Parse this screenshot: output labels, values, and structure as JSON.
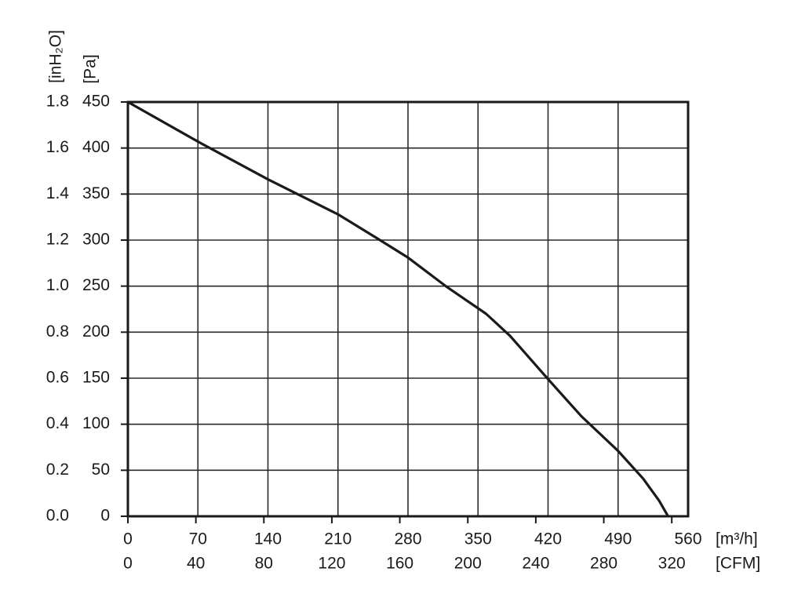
{
  "chart_data": {
    "type": "line",
    "y_label": "[inH₂O]",
    "y2_label": "[Pa]",
    "x_label": "[m³/h]",
    "x2_label": "[CFM]",
    "x": [
      0,
      70,
      140,
      210,
      249,
      280,
      319,
      358,
      382,
      420,
      453,
      490,
      515,
      531,
      540
    ],
    "values": [
      450,
      407,
      366,
      328,
      302,
      281,
      249,
      220,
      196,
      149,
      109,
      71,
      41,
      17,
      0
    ],
    "color": "#1a1a1a",
    "xlim": [
      0,
      560
    ],
    "xticks": [
      0,
      70,
      140,
      210,
      280,
      350,
      420,
      490,
      560
    ],
    "x2lim": [
      0,
      329.6
    ],
    "x2ticks": [
      0,
      40,
      80,
      120,
      160,
      200,
      240,
      280,
      320
    ],
    "ylim": [
      0,
      1.8
    ],
    "yticks": [
      {
        "value": 0,
        "label": "0.0"
      },
      0.2,
      0.4,
      0.6,
      0.8,
      {
        "value": 1,
        "label": "1.0"
      },
      1.2,
      1.4,
      1.6,
      1.8
    ],
    "y2lim": [
      0,
      450
    ],
    "y2ticks": [
      0,
      50,
      100,
      150,
      200,
      250,
      300,
      350,
      400,
      450
    ],
    "grid": true
  }
}
